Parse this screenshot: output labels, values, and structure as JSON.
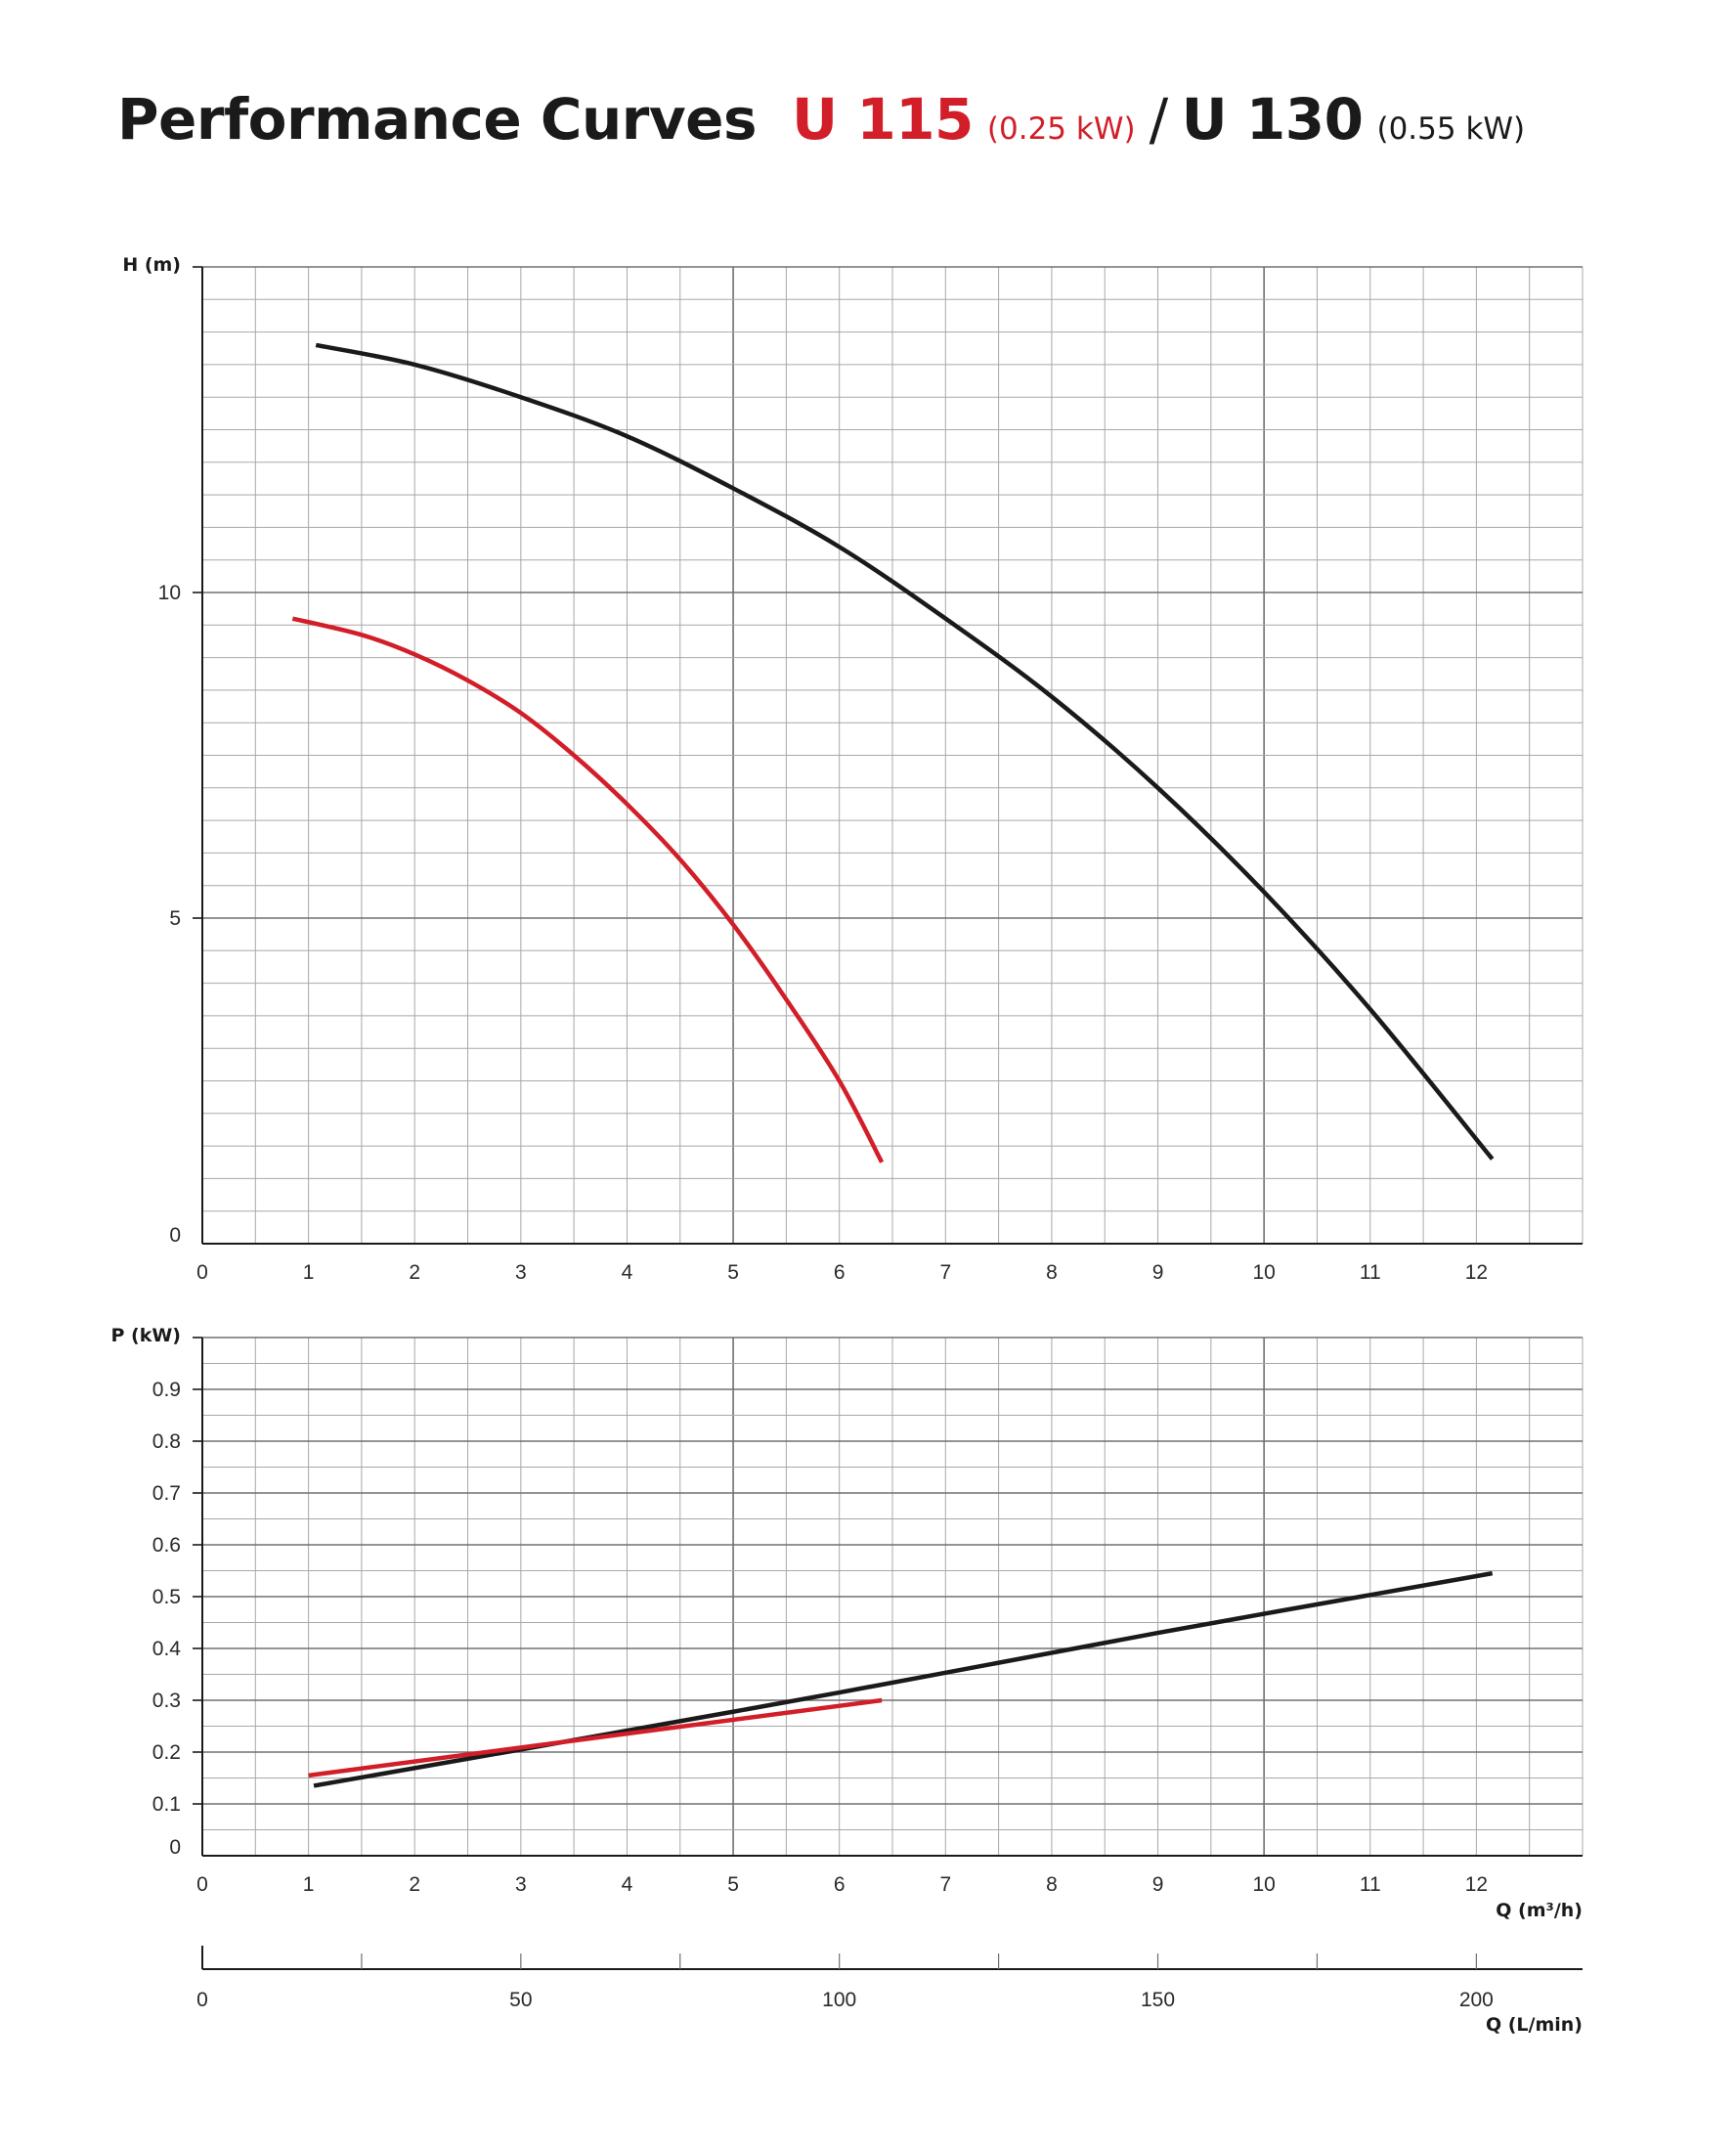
{
  "header": {
    "title": "Performance Curves",
    "model_a": "U 115",
    "model_a_power": "(0.25 kW)",
    "separator": "/",
    "model_b": "U 130",
    "model_b_power": "(0.55 kW)"
  },
  "colors": {
    "U 115": "#d21e28",
    "U 130": "#1a1a1a",
    "grid": "#a8a8a8"
  },
  "chart_data": [
    {
      "type": "line",
      "ylabel": "H (m)",
      "xlabel": "",
      "xlim": [
        0,
        13
      ],
      "ylim": [
        0,
        15
      ],
      "x_ticks": [
        "0",
        "1",
        "2",
        "3",
        "4",
        "5",
        "6",
        "7",
        "8",
        "9",
        "10",
        "11",
        "12"
      ],
      "y_ticks": [
        "0",
        "5",
        "10"
      ],
      "grid": true,
      "series": [
        {
          "name": "U 130",
          "color": "#1a1a1a",
          "x": [
            1.07,
            2,
            3,
            4,
            5,
            6,
            7,
            8,
            9,
            10,
            11,
            12.15
          ],
          "y": [
            13.8,
            13.5,
            13.0,
            12.4,
            11.6,
            10.7,
            9.6,
            8.4,
            7.0,
            5.4,
            3.6,
            1.3
          ]
        },
        {
          "name": "U 115",
          "color": "#d21e28",
          "x": [
            0.85,
            1.5,
            2,
            2.5,
            3,
            3.5,
            4,
            4.5,
            5,
            5.5,
            6,
            6.4
          ],
          "y": [
            9.6,
            9.35,
            9.05,
            8.65,
            8.15,
            7.5,
            6.75,
            5.9,
            4.9,
            3.75,
            2.5,
            1.25
          ]
        }
      ]
    },
    {
      "type": "line",
      "ylabel": "P (kW)",
      "xlabel": "Q (m³/h)",
      "xlim": [
        0,
        13
      ],
      "ylim": [
        0,
        1.0
      ],
      "x_ticks": [
        "0",
        "1",
        "2",
        "3",
        "4",
        "5",
        "6",
        "7",
        "8",
        "9",
        "10",
        "11",
        "12"
      ],
      "y_ticks": [
        "0",
        "0.1",
        "0.2",
        "0.3",
        "0.4",
        "0.5",
        "0.6",
        "0.7",
        "0.8",
        "0.9"
      ],
      "grid": true,
      "series": [
        {
          "name": "U 130",
          "color": "#1a1a1a",
          "x": [
            1.05,
            3,
            6,
            9,
            12.15
          ],
          "y": [
            0.135,
            0.205,
            0.315,
            0.43,
            0.545
          ]
        },
        {
          "name": "U 115",
          "color": "#d21e28",
          "x": [
            1.0,
            6.4
          ],
          "y": [
            0.155,
            0.3
          ]
        }
      ]
    },
    {
      "type": "axis",
      "xlabel": "Q (L/min)",
      "xlim": [
        0,
        216.67
      ],
      "x_ticks": [
        "0",
        "50",
        "100",
        "150",
        "200"
      ]
    }
  ]
}
